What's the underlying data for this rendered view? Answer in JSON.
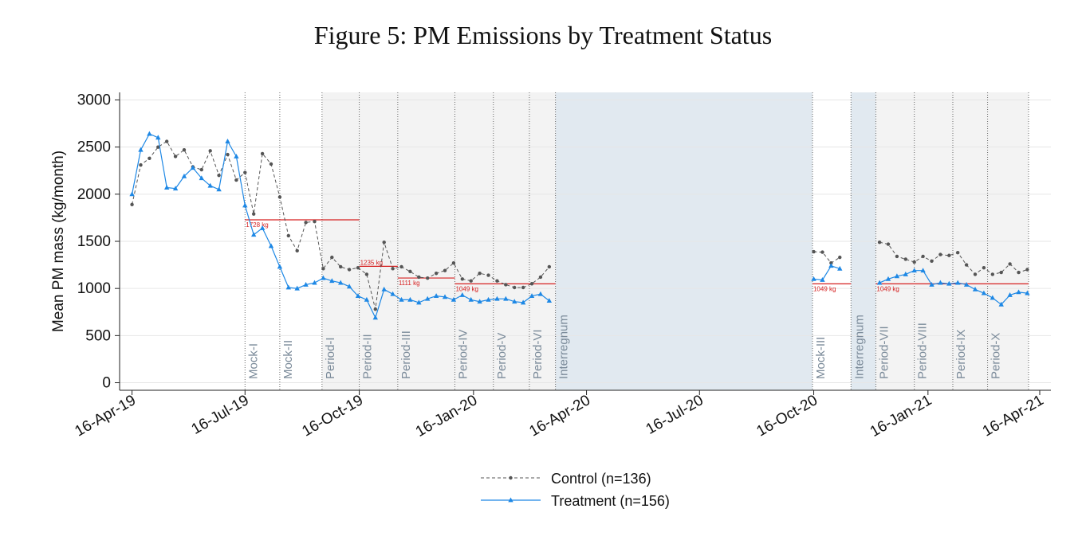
{
  "chart_data": {
    "type": "line",
    "title": "Figure 5: PM Emissions by Treatment Status",
    "ylabel": "Mean PM mass (kg/month)",
    "xlabel": "",
    "ylim": [
      -80,
      3080
    ],
    "xlim": [
      "2019-04-06",
      "2021-04-25"
    ],
    "y_ticks": [
      0,
      500,
      1000,
      1500,
      2000,
      2500,
      3000
    ],
    "x_ticks": [
      {
        "date": "2019-04-16",
        "label": "16-Apr-19"
      },
      {
        "date": "2019-07-16",
        "label": "16-Jul-19"
      },
      {
        "date": "2019-10-16",
        "label": "16-Oct-19"
      },
      {
        "date": "2020-01-16",
        "label": "16-Jan-20"
      },
      {
        "date": "2020-04-16",
        "label": "16-Apr-20"
      },
      {
        "date": "2020-07-16",
        "label": "16-Jul-20"
      },
      {
        "date": "2020-10-16",
        "label": "16-Oct-20"
      },
      {
        "date": "2021-01-16",
        "label": "16-Jan-21"
      },
      {
        "date": "2021-04-16",
        "label": "16-Apr-21"
      }
    ],
    "grid": true,
    "legend": "bottom",
    "colors": {
      "control": "#555555",
      "treatment": "#1e88e5",
      "threshold": "#d62020",
      "period_bg": "#f3f3f3",
      "interregnum_bg": "#e1e9f0"
    },
    "periods": [
      {
        "label": "Mock-I",
        "start": "2019-07-16",
        "end": "2019-08-13",
        "shade": "none"
      },
      {
        "label": "Mock-II",
        "start": "2019-08-13",
        "end": "2019-09-16",
        "shade": "none"
      },
      {
        "label": "Period-I",
        "start": "2019-09-16",
        "end": "2019-10-16",
        "shade": "period"
      },
      {
        "label": "Period-II",
        "start": "2019-10-16",
        "end": "2019-11-16",
        "shade": "period"
      },
      {
        "label": "Period-III",
        "start": "2019-11-16",
        "end": "2020-01-01",
        "shade": "period"
      },
      {
        "label": "Period-IV",
        "start": "2020-01-01",
        "end": "2020-02-01",
        "shade": "period"
      },
      {
        "label": "Period-V",
        "start": "2020-02-01",
        "end": "2020-03-01",
        "shade": "period"
      },
      {
        "label": "Period-VI",
        "start": "2020-03-01",
        "end": "2020-03-22",
        "shade": "period"
      },
      {
        "label": "Interregnum",
        "start": "2020-03-22",
        "end": "2020-10-15",
        "shade": "interregnum"
      },
      {
        "label": "Mock-III",
        "start": "2020-10-15",
        "end": "2020-11-15",
        "shade": "none"
      },
      {
        "label": "Interregnum",
        "start": "2020-11-15",
        "end": "2020-12-05",
        "shade": "interregnum"
      },
      {
        "label": "Period-VII",
        "start": "2020-12-05",
        "end": "2021-01-05",
        "shade": "period"
      },
      {
        "label": "Period-VIII",
        "start": "2021-01-05",
        "end": "2021-02-05",
        "shade": "period"
      },
      {
        "label": "Period-IX",
        "start": "2021-02-05",
        "end": "2021-03-05",
        "shade": "period"
      },
      {
        "label": "Period-X",
        "start": "2021-03-05",
        "end": "2021-04-07",
        "shade": "period"
      }
    ],
    "thresholds": [
      {
        "label": "1728 kg",
        "value": 1728,
        "start": "2019-07-16",
        "end": "2019-10-16"
      },
      {
        "label": "1235 kg",
        "value": 1235,
        "start": "2019-10-16",
        "end": "2019-11-16"
      },
      {
        "label": "1111 kg",
        "value": 1111,
        "start": "2019-11-16",
        "end": "2020-01-01"
      },
      {
        "label": "1049 kg",
        "value": 1049,
        "start": "2020-01-01",
        "end": "2020-03-22"
      },
      {
        "label": "1049 kg",
        "value": 1049,
        "start": "2020-10-15",
        "end": "2020-11-15"
      },
      {
        "label": "1049 kg",
        "value": 1049,
        "start": "2020-12-05",
        "end": "2021-04-07"
      }
    ],
    "series": [
      {
        "name": "Control (n=136)",
        "style": "dashed-dot",
        "segments": [
          {
            "x": [
              "2019-04-16",
              "2019-04-23",
              "2019-04-30",
              "2019-05-07",
              "2019-05-14",
              "2019-05-21",
              "2019-05-28",
              "2019-06-04",
              "2019-06-11",
              "2019-06-18",
              "2019-06-25",
              "2019-07-02",
              "2019-07-09",
              "2019-07-16",
              "2019-07-23",
              "2019-07-30",
              "2019-08-06",
              "2019-08-13",
              "2019-08-20",
              "2019-08-27",
              "2019-09-03",
              "2019-09-10",
              "2019-09-17",
              "2019-09-24",
              "2019-10-01",
              "2019-10-08",
              "2019-10-15",
              "2019-10-22",
              "2019-10-29",
              "2019-11-05",
              "2019-11-12",
              "2019-11-19",
              "2019-11-26",
              "2019-12-03",
              "2019-12-10",
              "2019-12-17",
              "2019-12-24",
              "2019-12-31",
              "2020-01-07",
              "2020-01-14",
              "2020-01-21",
              "2020-01-28",
              "2020-02-04",
              "2020-02-11",
              "2020-02-18",
              "2020-02-25",
              "2020-03-03",
              "2020-03-10",
              "2020-03-17"
            ],
            "y": [
              1890,
              2310,
              2380,
              2500,
              2560,
              2400,
              2470,
              2290,
              2260,
              2460,
              2200,
              2420,
              2150,
              2230,
              1790,
              2430,
              2320,
              1970,
              1560,
              1400,
              1700,
              1710,
              1210,
              1330,
              1230,
              1200,
              1220,
              1150,
              780,
              1490,
              1210,
              1230,
              1180,
              1120,
              1110,
              1160,
              1190,
              1270,
              1100,
              1080,
              1160,
              1140,
              1080,
              1040,
              1010,
              1010,
              1050,
              1120,
              1230
            ]
          },
          {
            "x": [
              "2020-10-16",
              "2020-10-23",
              "2020-10-30",
              "2020-11-06"
            ],
            "y": [
              1390,
              1385,
              1270,
              1330
            ]
          },
          {
            "x": [
              "2020-12-08",
              "2020-12-15",
              "2020-12-22",
              "2020-12-29",
              "2021-01-05",
              "2021-01-12",
              "2021-01-19",
              "2021-01-26",
              "2021-02-02",
              "2021-02-09",
              "2021-02-16",
              "2021-02-23",
              "2021-03-02",
              "2021-03-09",
              "2021-03-16",
              "2021-03-23",
              "2021-03-30",
              "2021-04-06"
            ],
            "y": [
              1490,
              1470,
              1340,
              1310,
              1280,
              1340,
              1290,
              1360,
              1350,
              1380,
              1250,
              1150,
              1220,
              1150,
              1170,
              1260,
              1170,
              1200
            ]
          }
        ]
      },
      {
        "name": "Treatment (n=156)",
        "style": "solid-triangle",
        "segments": [
          {
            "x": [
              "2019-04-16",
              "2019-04-23",
              "2019-04-30",
              "2019-05-07",
              "2019-05-14",
              "2019-05-21",
              "2019-05-28",
              "2019-06-04",
              "2019-06-11",
              "2019-06-18",
              "2019-06-25",
              "2019-07-02",
              "2019-07-09",
              "2019-07-16",
              "2019-07-23",
              "2019-07-30",
              "2019-08-06",
              "2019-08-13",
              "2019-08-20",
              "2019-08-27",
              "2019-09-03",
              "2019-09-10",
              "2019-09-17",
              "2019-09-24",
              "2019-10-01",
              "2019-10-08",
              "2019-10-15",
              "2019-10-22",
              "2019-10-29",
              "2019-11-05",
              "2019-11-12",
              "2019-11-19",
              "2019-11-26",
              "2019-12-03",
              "2019-12-10",
              "2019-12-17",
              "2019-12-24",
              "2019-12-31",
              "2020-01-07",
              "2020-01-14",
              "2020-01-21",
              "2020-01-28",
              "2020-02-04",
              "2020-02-11",
              "2020-02-18",
              "2020-02-25",
              "2020-03-03",
              "2020-03-10",
              "2020-03-17"
            ],
            "y": [
              2000,
              2470,
              2640,
              2600,
              2070,
              2060,
              2190,
              2280,
              2170,
              2090,
              2050,
              2560,
              2400,
              1880,
              1570,
              1640,
              1450,
              1230,
              1010,
              1000,
              1040,
              1060,
              1110,
              1080,
              1060,
              1020,
              920,
              880,
              690,
              990,
              940,
              880,
              880,
              850,
              890,
              920,
              910,
              880,
              930,
              880,
              860,
              880,
              890,
              890,
              860,
              850,
              920,
              940,
              870
            ]
          },
          {
            "x": [
              "2020-10-16",
              "2020-10-23",
              "2020-10-30",
              "2020-11-06"
            ],
            "y": [
              1100,
              1090,
              1240,
              1210
            ]
          },
          {
            "x": [
              "2020-12-08",
              "2020-12-15",
              "2020-12-22",
              "2020-12-29",
              "2021-01-05",
              "2021-01-12",
              "2021-01-19",
              "2021-01-26",
              "2021-02-02",
              "2021-02-09",
              "2021-02-16",
              "2021-02-23",
              "2021-03-02",
              "2021-03-09",
              "2021-03-16",
              "2021-03-23",
              "2021-03-30",
              "2021-04-06"
            ],
            "y": [
              1060,
              1100,
              1130,
              1150,
              1190,
              1190,
              1040,
              1060,
              1050,
              1060,
              1040,
              990,
              950,
              900,
              830,
              930,
              960,
              950
            ]
          }
        ]
      }
    ]
  }
}
